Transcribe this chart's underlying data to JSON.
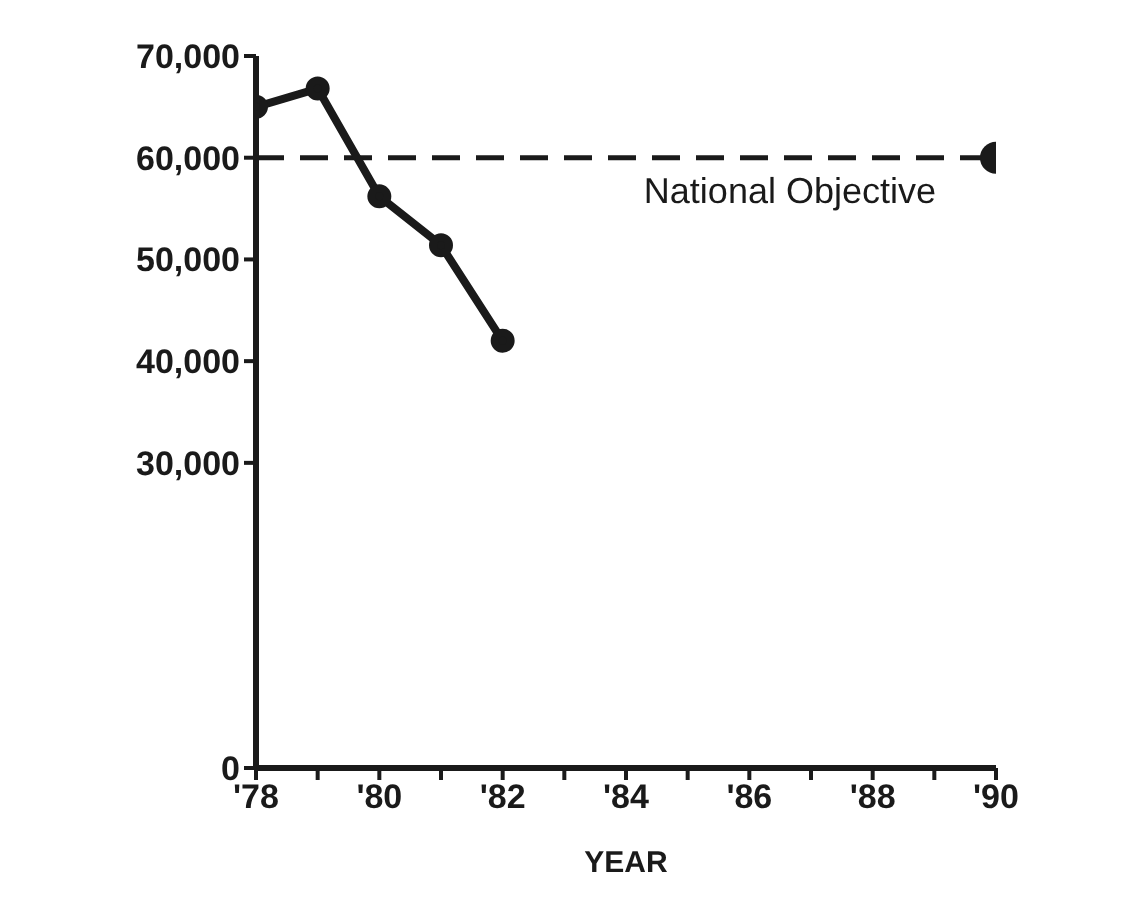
{
  "chart_data": {
    "type": "line",
    "xlabel": "YEAR",
    "x": [
      1978,
      1979,
      1980,
      1981,
      1982
    ],
    "series": [
      {
        "color": "#1a1a1a",
        "values": [
          65000,
          66800,
          56200,
          51400,
          42000
        ]
      },
      {
        "type": "scatter",
        "color": "#1a1a1a",
        "x": [
          1990
        ],
        "values": [
          60000
        ]
      }
    ],
    "xlim": [
      1978,
      1990
    ],
    "xticks": [
      {
        "value": 1978,
        "label": "'78"
      },
      {
        "value": 1979,
        "label": null
      },
      {
        "value": 1980,
        "label": "'80"
      },
      {
        "value": 1981,
        "label": null
      },
      {
        "value": 1982,
        "label": "'82"
      },
      {
        "value": 1983,
        "label": null
      },
      {
        "value": 1984,
        "label": "'84"
      },
      {
        "value": 1985,
        "label": null
      },
      {
        "value": 1986,
        "label": "'86"
      },
      {
        "value": 1987,
        "label": null
      },
      {
        "value": 1988,
        "label": "'88"
      },
      {
        "value": 1989,
        "label": null
      },
      {
        "value": 1990,
        "label": "'90"
      }
    ],
    "ylim": [
      0,
      70000
    ],
    "yticks": [
      {
        "value": 0,
        "label": "0"
      },
      {
        "value": 30000,
        "label": "30,000"
      },
      {
        "value": 40000,
        "label": "40,000"
      },
      {
        "value": 50000,
        "label": "50,000"
      },
      {
        "value": 60000,
        "label": "60,000"
      },
      {
        "value": 70000,
        "label": "70,000"
      }
    ],
    "ref_lines": [
      {
        "axis": "y",
        "value": 60000,
        "label": "National Objective",
        "line_style": "dashed",
        "color": "#1a1a1a"
      }
    ],
    "marker": "circle",
    "line_style": "solid",
    "grid": false,
    "legend": false
  }
}
